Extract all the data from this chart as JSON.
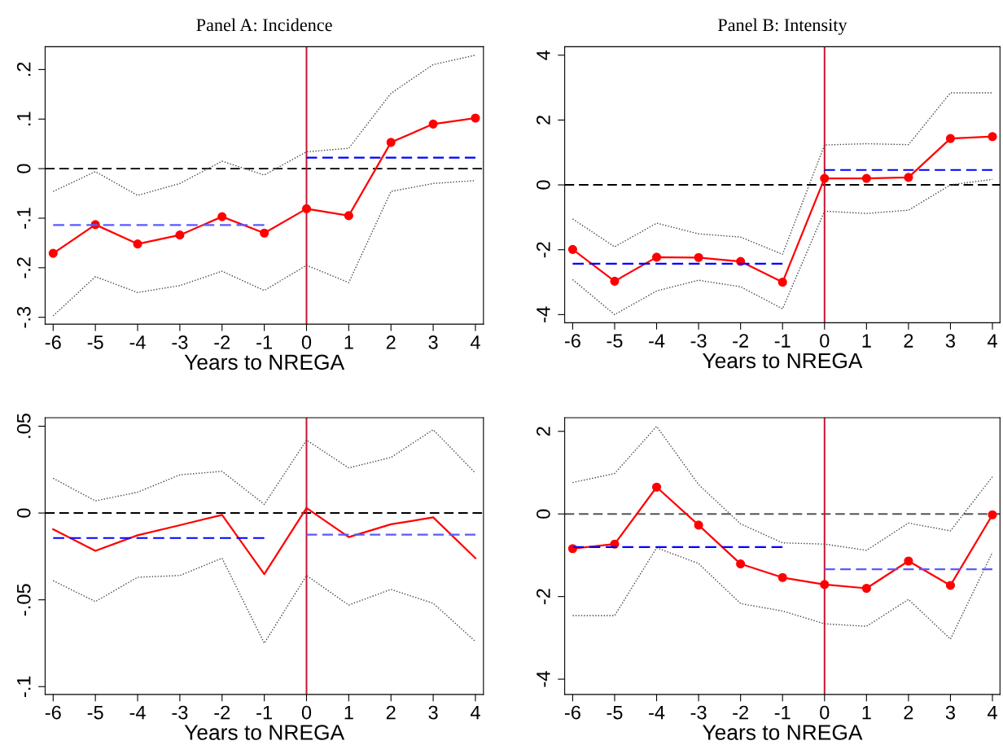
{
  "chart_data": [
    {
      "type": "line",
      "title": "Panel A: Incidence",
      "xlabel": "Years to NREGA",
      "x": [
        -6,
        -5,
        -4,
        -3,
        -2,
        -1,
        0,
        1,
        2,
        3,
        4
      ],
      "xlim": [
        -6.19,
        4.19
      ],
      "xticks": [
        -6,
        -5,
        -4,
        -3,
        -2,
        -1,
        0,
        1,
        2,
        3,
        4
      ],
      "ylim": [
        -0.314,
        0.246
      ],
      "yticks": [
        {
          "value": -0.3,
          "label": "-.3"
        },
        {
          "value": -0.2,
          "label": "-.2"
        },
        {
          "value": -0.1,
          "label": "-.1"
        },
        0,
        {
          "value": 0.1,
          "label": ".1"
        },
        {
          "value": 0.2,
          "label": ".2"
        }
      ],
      "grid": false,
      "legend": false,
      "series": [
        {
          "color": "#ff0000",
          "marker": "circle",
          "line_style": "solid",
          "values": [
            -0.171,
            -0.113,
            -0.152,
            -0.134,
            -0.097,
            -0.13,
            -0.081,
            -0.095,
            0.053,
            0.09,
            0.102
          ]
        },
        {
          "color": "#444444",
          "marker": "none",
          "line_style": "dotted",
          "values": [
            -0.046,
            -0.006,
            -0.054,
            -0.03,
            0.015,
            -0.013,
            0.034,
            0.041,
            0.152,
            0.21,
            0.229
          ]
        },
        {
          "color": "#444444",
          "marker": "none",
          "line_style": "dotted",
          "values": [
            -0.297,
            -0.218,
            -0.25,
            -0.236,
            -0.207,
            -0.246,
            -0.195,
            -0.23,
            -0.046,
            -0.03,
            -0.024
          ]
        },
        {
          "color": "#5a5aff",
          "marker": "none",
          "line_style": "dashed",
          "x": [
            -6,
            -1
          ],
          "values": [
            -0.114,
            -0.114
          ]
        },
        {
          "color": "#0000ff",
          "marker": "none",
          "line_style": "dashed",
          "x": [
            0,
            4
          ],
          "values": [
            0.022,
            0.022
          ]
        }
      ],
      "ref_lines": [
        {
          "axis": "y",
          "value": 0,
          "color": "#000000",
          "line_style": "dashed"
        },
        {
          "axis": "x",
          "value": 0,
          "color": "#c8102e",
          "line_style": "solid"
        }
      ]
    },
    {
      "type": "line",
      "title": "Panel B: Intensity",
      "xlabel": "Years to NREGA",
      "x": [
        -6,
        -5,
        -4,
        -3,
        -2,
        -1,
        0,
        1,
        2,
        3,
        4
      ],
      "xlim": [
        -6.19,
        4.18
      ],
      "xticks": [
        -6,
        -5,
        -4,
        -3,
        -2,
        -1,
        0,
        1,
        2,
        3,
        4
      ],
      "ylim": [
        -4.25,
        4.26
      ],
      "yticks": [
        -4,
        -2,
        0,
        2,
        4
      ],
      "grid": false,
      "legend": false,
      "series": [
        {
          "color": "#ff0000",
          "marker": "circle",
          "line_style": "solid",
          "values": [
            -1.99,
            -2.97,
            -2.23,
            -2.24,
            -2.36,
            -3.0,
            0.2,
            0.2,
            0.23,
            1.43,
            1.49
          ]
        },
        {
          "color": "#444444",
          "marker": "none",
          "line_style": "dotted",
          "values": [
            -1.05,
            -1.91,
            -1.18,
            -1.51,
            -1.61,
            -2.14,
            1.23,
            1.27,
            1.24,
            2.84,
            2.84
          ]
        },
        {
          "color": "#444444",
          "marker": "none",
          "line_style": "dotted",
          "values": [
            -2.92,
            -4.0,
            -3.27,
            -2.94,
            -3.14,
            -3.82,
            -0.81,
            -0.88,
            -0.78,
            0.0,
            0.17
          ]
        },
        {
          "color": "#0000ff",
          "marker": "none",
          "line_style": "dashed",
          "x": [
            -6,
            -1
          ],
          "values": [
            -2.43,
            -2.43
          ]
        },
        {
          "color": "#0000ff",
          "marker": "none",
          "line_style": "dashed",
          "x": [
            0,
            4
          ],
          "values": [
            0.46,
            0.46
          ]
        }
      ],
      "ref_lines": [
        {
          "axis": "y",
          "value": 0,
          "color": "#000000",
          "line_style": "dashed"
        },
        {
          "axis": "x",
          "value": 0,
          "color": "#c8102e",
          "line_style": "solid"
        }
      ]
    },
    {
      "type": "line",
      "xlabel": "Years to NREGA",
      "x": [
        -6,
        -5,
        -4,
        -3,
        -2,
        -1,
        0,
        1,
        2,
        3,
        4
      ],
      "xlim": [
        -6.19,
        4.19
      ],
      "xticks": [
        -6,
        -5,
        -4,
        -3,
        -2,
        -1,
        0,
        1,
        2,
        3,
        4
      ],
      "ylim": [
        -0.1045,
        0.0549
      ],
      "yticks": [
        {
          "value": -0.1,
          "label": "-.1"
        },
        {
          "value": -0.05,
          "label": "-.05"
        },
        0,
        {
          "value": 0.05,
          "label": ".05"
        }
      ],
      "grid": false,
      "legend": false,
      "series": [
        {
          "color": "#ff0000",
          "marker": "none",
          "line_style": "solid",
          "values": [
            -0.0094,
            -0.0218,
            -0.0128,
            -0.007,
            -0.0011,
            -0.0352,
            0.0029,
            -0.0139,
            -0.0065,
            -0.0025,
            -0.026
          ]
        },
        {
          "color": "#444444",
          "marker": "none",
          "line_style": "dotted",
          "values": [
            0.02,
            0.007,
            0.012,
            0.022,
            0.024,
            0.005,
            0.042,
            0.026,
            0.032,
            0.048,
            0.023
          ]
        },
        {
          "color": "#444444",
          "marker": "none",
          "line_style": "dotted",
          "values": [
            -0.039,
            -0.051,
            -0.037,
            -0.036,
            -0.026,
            -0.075,
            -0.036,
            -0.053,
            -0.044,
            -0.052,
            -0.074
          ]
        },
        {
          "color": "#0000ff",
          "marker": "none",
          "line_style": "dashed",
          "x": [
            -6,
            -1
          ],
          "values": [
            -0.0144,
            -0.0144
          ]
        },
        {
          "color": "#5a5aff",
          "marker": "none",
          "line_style": "dashed",
          "x": [
            0,
            4
          ],
          "values": [
            -0.0125,
            -0.0125
          ]
        }
      ],
      "ref_lines": [
        {
          "axis": "y",
          "value": 0,
          "color": "#000000",
          "line_style": "dashed"
        },
        {
          "axis": "x",
          "value": 0,
          "color": "#c8102e",
          "line_style": "solid"
        }
      ]
    },
    {
      "type": "line",
      "xlabel": "Years to NREGA",
      "x": [
        -6,
        -5,
        -4,
        -3,
        -2,
        -1,
        0,
        1,
        2,
        3,
        4
      ],
      "xlim": [
        -6.19,
        4.18
      ],
      "xticks": [
        -6,
        -5,
        -4,
        -3,
        -2,
        -1,
        0,
        1,
        2,
        3,
        4
      ],
      "ylim": [
        -4.37,
        2.33
      ],
      "yticks": [
        -4,
        -2,
        0,
        2
      ],
      "grid": false,
      "legend": false,
      "series": [
        {
          "color": "#ff0000",
          "marker": "circle",
          "line_style": "solid",
          "values": [
            -0.84,
            -0.73,
            0.65,
            -0.27,
            -1.21,
            -1.54,
            -1.71,
            -1.8,
            -1.14,
            -1.73,
            -0.02
          ]
        },
        {
          "color": "#444444",
          "marker": "none",
          "line_style": "dotted",
          "values": [
            0.76,
            0.98,
            2.12,
            0.71,
            -0.24,
            -0.7,
            -0.73,
            -0.88,
            -0.22,
            -0.41,
            0.9
          ]
        },
        {
          "color": "#444444",
          "marker": "none",
          "line_style": "dotted",
          "values": [
            -2.46,
            -2.46,
            -0.82,
            -1.2,
            -2.17,
            -2.35,
            -2.66,
            -2.72,
            -2.07,
            -3.03,
            -0.93
          ]
        },
        {
          "color": "#0000ff",
          "marker": "none",
          "line_style": "dashed",
          "x": [
            -6,
            -1
          ],
          "values": [
            -0.8,
            -0.8
          ]
        },
        {
          "color": "#5a5aff",
          "marker": "none",
          "line_style": "dashed",
          "x": [
            0,
            4
          ],
          "values": [
            -1.34,
            -1.34
          ]
        }
      ],
      "ref_lines": [
        {
          "axis": "y",
          "value": 0,
          "color": "#555555",
          "line_style": "dashed"
        },
        {
          "axis": "x",
          "value": 0,
          "color": "#c8102e",
          "line_style": "solid"
        }
      ]
    }
  ]
}
